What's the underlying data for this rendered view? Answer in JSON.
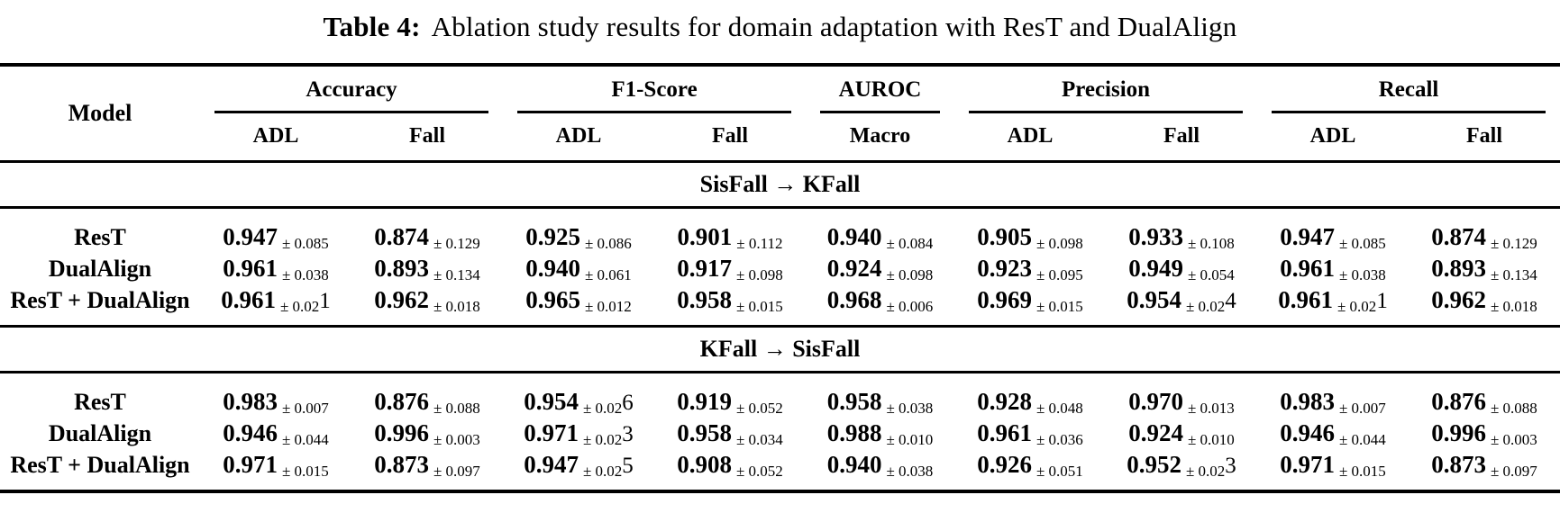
{
  "title": {
    "label": "Table 4:",
    "text": "Ablation study results for domain adaptation with ResT and DualAlign"
  },
  "table": {
    "model_header": "Model",
    "groups": [
      {
        "label": "Accuracy",
        "sub": [
          "ADL",
          "Fall"
        ]
      },
      {
        "label": "F1-Score",
        "sub": [
          "ADL",
          "Fall"
        ]
      },
      {
        "label": "AUROC",
        "sub": [
          "Macro"
        ]
      },
      {
        "label": "Precision",
        "sub": [
          "ADL",
          "Fall"
        ]
      },
      {
        "label": "Recall",
        "sub": [
          "ADL",
          "Fall"
        ]
      }
    ],
    "sections": [
      {
        "label": "SisFall → KFall",
        "rows": [
          {
            "model": "ResT",
            "cells": [
              {
                "v": "0.947",
                "pm": "± 0.085",
                "big": ""
              },
              {
                "v": "0.874",
                "pm": "± 0.129",
                "big": ""
              },
              {
                "v": "0.925",
                "pm": "± 0.086",
                "big": ""
              },
              {
                "v": "0.901",
                "pm": "± 0.112",
                "big": ""
              },
              {
                "v": "0.940",
                "pm": "± 0.084",
                "big": ""
              },
              {
                "v": "0.905",
                "pm": "± 0.098",
                "big": ""
              },
              {
                "v": "0.933",
                "pm": "± 0.108",
                "big": ""
              },
              {
                "v": "0.947",
                "pm": "± 0.085",
                "big": ""
              },
              {
                "v": "0.874",
                "pm": "± 0.129",
                "big": ""
              }
            ]
          },
          {
            "model": "DualAlign",
            "cells": [
              {
                "v": "0.961",
                "pm": "± 0.038",
                "big": ""
              },
              {
                "v": "0.893",
                "pm": "± 0.134",
                "big": ""
              },
              {
                "v": "0.940",
                "pm": "± 0.061",
                "big": ""
              },
              {
                "v": "0.917",
                "pm": "± 0.098",
                "big": ""
              },
              {
                "v": "0.924",
                "pm": "± 0.098",
                "big": ""
              },
              {
                "v": "0.923",
                "pm": "± 0.095",
                "big": ""
              },
              {
                "v": "0.949",
                "pm": "± 0.054",
                "big": ""
              },
              {
                "v": "0.961",
                "pm": "± 0.038",
                "big": ""
              },
              {
                "v": "0.893",
                "pm": "± 0.134",
                "big": ""
              }
            ]
          },
          {
            "model": "ResT + DualAlign",
            "cells": [
              {
                "v": "0.961",
                "pm": "± 0.02",
                "big": "1"
              },
              {
                "v": "0.962",
                "pm": "± 0.018",
                "big": ""
              },
              {
                "v": "0.965",
                "pm": "± 0.012",
                "big": ""
              },
              {
                "v": "0.958",
                "pm": "± 0.015",
                "big": ""
              },
              {
                "v": "0.968",
                "pm": "± 0.006",
                "big": ""
              },
              {
                "v": "0.969",
                "pm": "± 0.015",
                "big": ""
              },
              {
                "v": "0.954",
                "pm": "± 0.02",
                "big": "4"
              },
              {
                "v": "0.961",
                "pm": "± 0.02",
                "big": "1"
              },
              {
                "v": "0.962",
                "pm": "± 0.018",
                "big": ""
              }
            ]
          }
        ]
      },
      {
        "label": "KFall → SisFall",
        "rows": [
          {
            "model": "ResT",
            "cells": [
              {
                "v": "0.983",
                "pm": "± 0.007",
                "big": ""
              },
              {
                "v": "0.876",
                "pm": "± 0.088",
                "big": ""
              },
              {
                "v": "0.954",
                "pm": "± 0.02",
                "big": "6"
              },
              {
                "v": "0.919",
                "pm": "± 0.052",
                "big": ""
              },
              {
                "v": "0.958",
                "pm": "± 0.038",
                "big": ""
              },
              {
                "v": "0.928",
                "pm": "± 0.048",
                "big": ""
              },
              {
                "v": "0.970",
                "pm": "± 0.013",
                "big": ""
              },
              {
                "v": "0.983",
                "pm": "± 0.007",
                "big": ""
              },
              {
                "v": "0.876",
                "pm": "± 0.088",
                "big": ""
              }
            ]
          },
          {
            "model": "DualAlign",
            "cells": [
              {
                "v": "0.946",
                "pm": "± 0.044",
                "big": ""
              },
              {
                "v": "0.996",
                "pm": "± 0.003",
                "big": ""
              },
              {
                "v": "0.971",
                "pm": "± 0.02",
                "big": "3"
              },
              {
                "v": "0.958",
                "pm": "± 0.034",
                "big": ""
              },
              {
                "v": "0.988",
                "pm": "± 0.010",
                "big": ""
              },
              {
                "v": "0.961",
                "pm": "± 0.036",
                "big": ""
              },
              {
                "v": "0.924",
                "pm": "± 0.010",
                "big": ""
              },
              {
                "v": "0.946",
                "pm": "± 0.044",
                "big": ""
              },
              {
                "v": "0.996",
                "pm": "± 0.003",
                "big": ""
              }
            ]
          },
          {
            "model": "ResT + DualAlign",
            "cells": [
              {
                "v": "0.971",
                "pm": "± 0.015",
                "big": ""
              },
              {
                "v": "0.873",
                "pm": "± 0.097",
                "big": ""
              },
              {
                "v": "0.947",
                "pm": "± 0.02",
                "big": "5"
              },
              {
                "v": "0.908",
                "pm": "± 0.052",
                "big": ""
              },
              {
                "v": "0.940",
                "pm": "± 0.038",
                "big": ""
              },
              {
                "v": "0.926",
                "pm": "± 0.051",
                "big": ""
              },
              {
                "v": "0.952",
                "pm": "± 0.02",
                "big": "3"
              },
              {
                "v": "0.971",
                "pm": "± 0.015",
                "big": ""
              },
              {
                "v": "0.873",
                "pm": "± 0.097",
                "big": ""
              }
            ]
          }
        ]
      }
    ]
  }
}
